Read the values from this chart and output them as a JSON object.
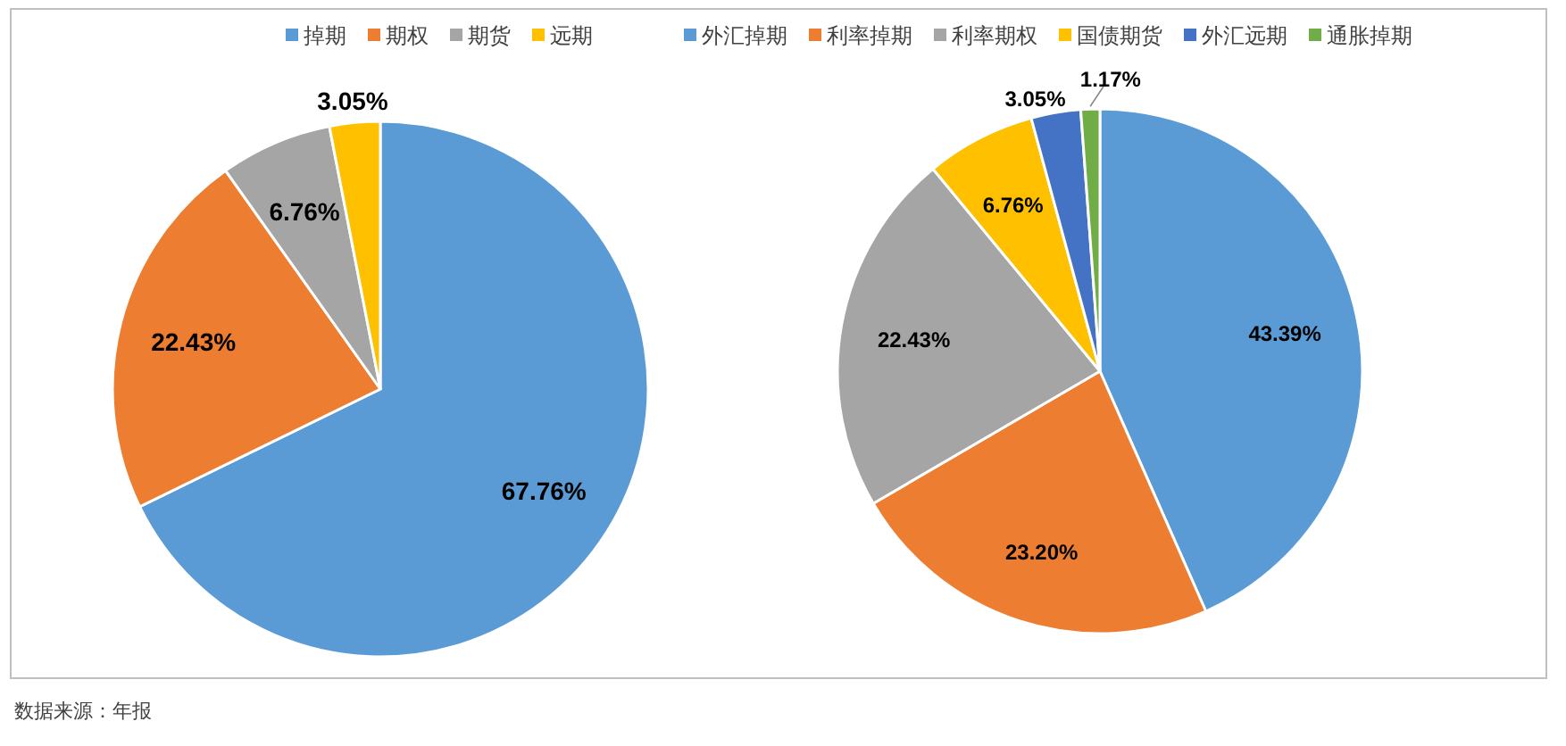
{
  "chart_data": [
    {
      "type": "pie",
      "categories": [
        "掉期",
        "期权",
        "期货",
        "远期"
      ],
      "values": [
        67.76,
        22.43,
        6.76,
        3.05
      ],
      "value_labels": [
        "67.76%",
        "22.43%",
        "6.76%",
        "3.05%"
      ],
      "colors": [
        "#5b9bd5",
        "#ed7d31",
        "#a5a5a5",
        "#ffc000"
      ],
      "legend": "top",
      "annotations": [
        "数据来源：年报"
      ]
    },
    {
      "type": "pie",
      "categories": [
        "外汇掉期",
        "利率掉期",
        "利率期权",
        "国债期货",
        "外汇远期",
        "通胀掉期"
      ],
      "values": [
        43.39,
        23.2,
        22.43,
        6.76,
        3.05,
        1.17
      ],
      "value_labels": [
        "43.39%",
        "23.20%",
        "22.43%",
        "6.76%",
        "3.05%",
        "1.17%"
      ],
      "colors": [
        "#5b9bd5",
        "#ed7d31",
        "#a5a5a5",
        "#ffc000",
        "#4472c4",
        "#70ad47"
      ],
      "legend": "top"
    }
  ]
}
